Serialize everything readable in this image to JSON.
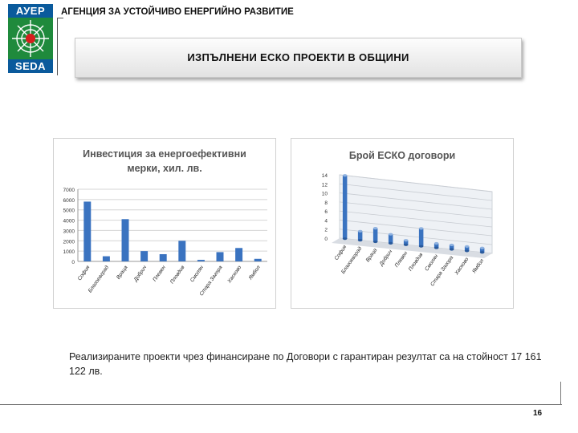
{
  "logo": {
    "top_text": "АУЕР",
    "bottom_text": "SEDA",
    "colors": {
      "blue": "#0a5a9c",
      "green": "#1f8a3c",
      "red": "#d81e1e"
    }
  },
  "header": {
    "agency": "АГЕНЦИЯ ЗА УСТОЙЧИВО ЕНЕРГИЙНО РАЗВИТИЕ"
  },
  "slide": {
    "title": "ИЗПЪЛНЕНИ ЕСКО ПРОЕКТИ В ОБЩИНИ"
  },
  "chart_data": [
    {
      "type": "bar",
      "title_line1": "Инвестиция за енергоефективни",
      "title_line2": "мерки, хил. лв.",
      "categories": [
        "София",
        "Благоевград",
        "Враца",
        "Добрич",
        "Плевен",
        "Пловдив",
        "Смолян",
        "Стара Загора",
        "Хасково",
        "Ямбол"
      ],
      "values": [
        5800,
        500,
        4100,
        1000,
        700,
        2000,
        150,
        900,
        1300,
        250
      ],
      "ylim": [
        0,
        7000
      ],
      "yticks": [
        0,
        1000,
        2000,
        3000,
        4000,
        5000,
        6000,
        7000
      ],
      "grid": true,
      "color": "#3a73c0"
    },
    {
      "type": "bar",
      "title": "Брой ЕСКО договори",
      "categories": [
        "София",
        "Благоевград",
        "Враца",
        "Добрич",
        "Плевен",
        "Пловдив",
        "Смолян",
        "Стара Загора",
        "Хасково",
        "Ямбол"
      ],
      "values": [
        14,
        2,
        3,
        2,
        1,
        4,
        1,
        1,
        1,
        1
      ],
      "ylim": [
        0,
        14
      ],
      "yticks": [
        0,
        2,
        4,
        6,
        8,
        10,
        12,
        14
      ],
      "grid": true,
      "color": "#3a73c0"
    }
  ],
  "note": "Реализираните проекти чрез финансиране по Договори с гарантиран резултат са на стойност 17 161 122 лв.",
  "page_number": "16"
}
